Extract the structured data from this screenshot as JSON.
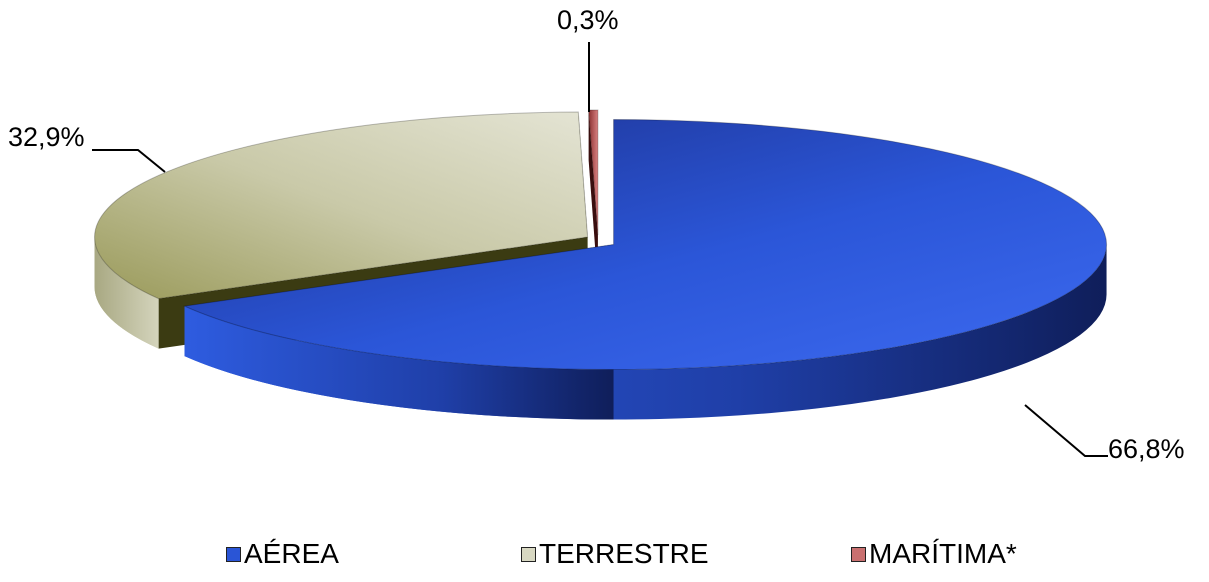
{
  "chart_data": {
    "type": "pie",
    "title": "",
    "slices": [
      {
        "name": "AÉREA",
        "value": 66.8,
        "label": "66,8%",
        "color": "#2a55d6"
      },
      {
        "name": "TERRESTRE",
        "value": 32.9,
        "label": "32,9%",
        "color": "#d8d8c2"
      },
      {
        "name": "MARÍTIMA*",
        "value": 0.3,
        "label": "0,3%",
        "color": "#c97070"
      }
    ],
    "legend_position": "bottom",
    "style": "3d-exploded"
  }
}
